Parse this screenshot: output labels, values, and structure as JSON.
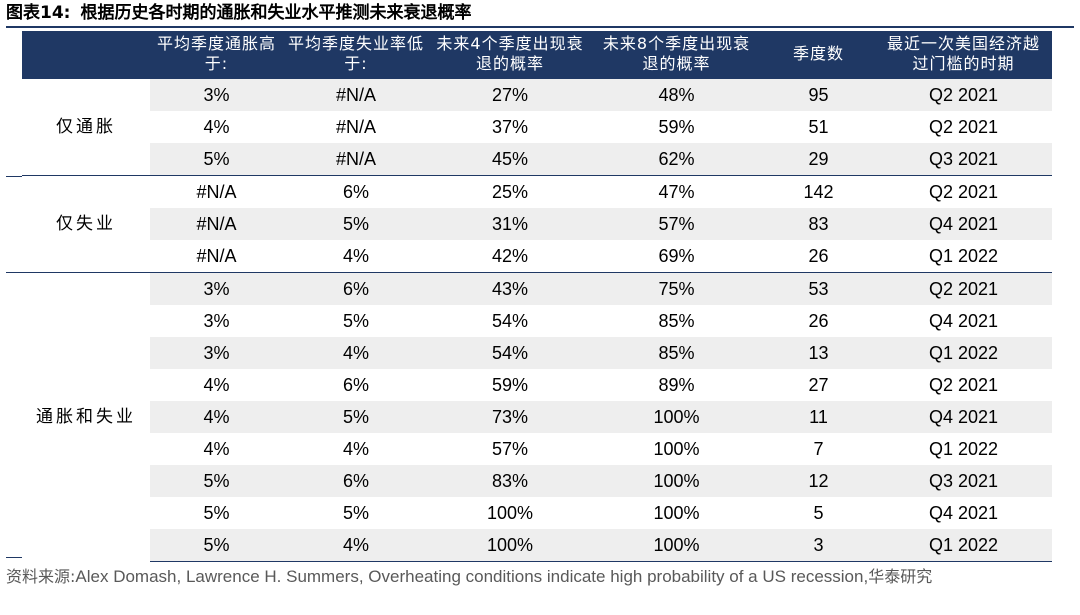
{
  "title": {
    "label": "图表14:",
    "text": "根据历史各时期的通胀和失业水平推测未来衰退概率"
  },
  "table": {
    "headers": [
      "",
      "平均季度通胀高于:",
      "平均季度失业率低于:",
      "未来4个季度出现衰退的概率",
      "未来8个季度出现衰退的概率",
      "季度数",
      "最近一次美国经济越过门槛的时期"
    ],
    "groups": [
      {
        "name": "仅通胀",
        "rows": [
          [
            "3%",
            "#N/A",
            "27%",
            "48%",
            "95",
            "Q2 2021"
          ],
          [
            "4%",
            "#N/A",
            "37%",
            "59%",
            "51",
            "Q2 2021"
          ],
          [
            "5%",
            "#N/A",
            "45%",
            "62%",
            "29",
            "Q3 2021"
          ]
        ]
      },
      {
        "name": "仅失业",
        "rows": [
          [
            "#N/A",
            "6%",
            "25%",
            "47%",
            "142",
            "Q2 2021"
          ],
          [
            "#N/A",
            "5%",
            "31%",
            "57%",
            "83",
            "Q4 2021"
          ],
          [
            "#N/A",
            "4%",
            "42%",
            "69%",
            "26",
            "Q1 2022"
          ]
        ]
      },
      {
        "name": "通胀和失业",
        "rows": [
          [
            "3%",
            "6%",
            "43%",
            "75%",
            "53",
            "Q2 2021"
          ],
          [
            "3%",
            "5%",
            "54%",
            "85%",
            "26",
            "Q4 2021"
          ],
          [
            "3%",
            "4%",
            "54%",
            "85%",
            "13",
            "Q1 2022"
          ],
          [
            "4%",
            "6%",
            "59%",
            "89%",
            "27",
            "Q2 2021"
          ],
          [
            "4%",
            "5%",
            "73%",
            "100%",
            "11",
            "Q4 2021"
          ],
          [
            "4%",
            "4%",
            "57%",
            "100%",
            "7",
            "Q1 2022"
          ],
          [
            "5%",
            "6%",
            "83%",
            "100%",
            "12",
            "Q3 2021"
          ],
          [
            "5%",
            "5%",
            "100%",
            "100%",
            "5",
            "Q4 2021"
          ],
          [
            "5%",
            "4%",
            "100%",
            "100%",
            "3",
            "Q1 2022"
          ]
        ]
      }
    ]
  },
  "source": {
    "prefix": "资料来源:",
    "text": "Alex Domash, Lawrence H. Summers, Overheating conditions indicate high probability of a US recession,",
    "suffix": "华泰研究"
  },
  "colors": {
    "header_bg": "#1f3864",
    "shade": "#eeeeee"
  }
}
